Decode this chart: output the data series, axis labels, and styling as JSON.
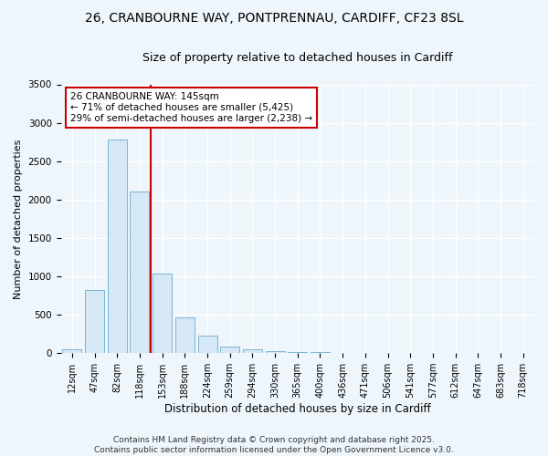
{
  "title_line1": "26, CRANBOURNE WAY, PONTPRENNAU, CARDIFF, CF23 8SL",
  "title_line2": "Size of property relative to detached houses in Cardiff",
  "xlabel": "Distribution of detached houses by size in Cardiff",
  "ylabel": "Number of detached properties",
  "categories": [
    "12sqm",
    "47sqm",
    "82sqm",
    "118sqm",
    "153sqm",
    "188sqm",
    "224sqm",
    "259sqm",
    "294sqm",
    "330sqm",
    "365sqm",
    "400sqm",
    "436sqm",
    "471sqm",
    "506sqm",
    "541sqm",
    "577sqm",
    "612sqm",
    "647sqm",
    "683sqm",
    "718sqm"
  ],
  "values": [
    50,
    820,
    2780,
    2100,
    1040,
    460,
    230,
    80,
    55,
    30,
    15,
    10,
    8,
    5,
    4,
    3,
    2,
    2,
    1,
    1,
    1
  ],
  "bar_color": "#d6e8f5",
  "bar_edge_color": "#7ab4d4",
  "vline_color": "#cc0000",
  "annotation_text": "26 CRANBOURNE WAY: 145sqm\n← 71% of detached houses are smaller (5,425)\n29% of semi-detached houses are larger (2,238) →",
  "annotation_box_color": "white",
  "annotation_box_edge_color": "#cc0000",
  "ylim": [
    0,
    3500
  ],
  "yticks": [
    0,
    500,
    1000,
    1500,
    2000,
    2500,
    3000,
    3500
  ],
  "bg_color": "#eef6fc",
  "footnote": "Contains HM Land Registry data © Crown copyright and database right 2025.\nContains public sector information licensed under the Open Government Licence v3.0.",
  "title_fontsize": 10,
  "subtitle_fontsize": 9,
  "annotation_fontsize": 7.5,
  "footnote_fontsize": 6.5,
  "ylabel_fontsize": 8,
  "xlabel_fontsize": 8.5,
  "tick_fontsize": 7,
  "ytick_fontsize": 7.5
}
